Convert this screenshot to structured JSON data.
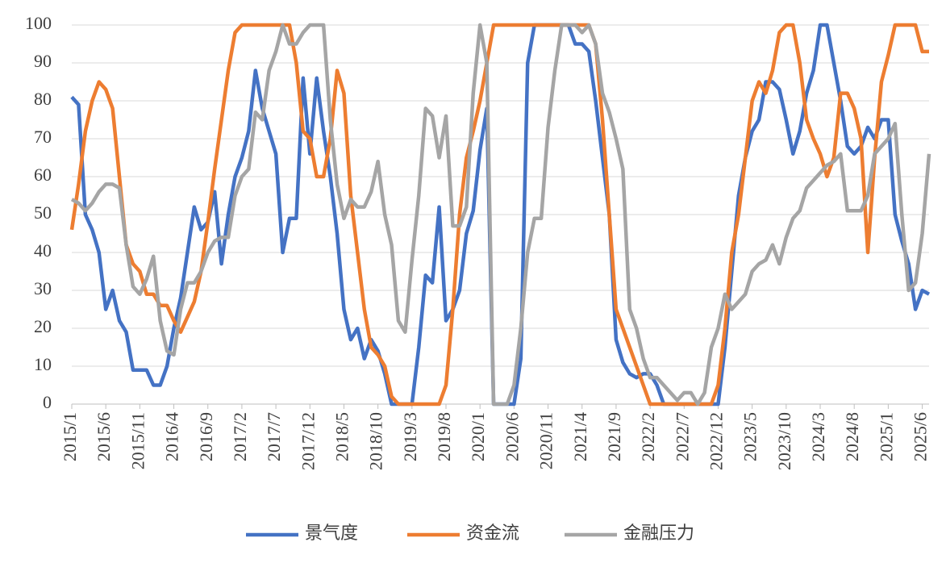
{
  "chart_data": {
    "type": "line",
    "categories": [
      "2015/1",
      null,
      null,
      null,
      null,
      "2015/6",
      null,
      null,
      null,
      null,
      "2015/11",
      null,
      null,
      null,
      null,
      "2016/4",
      null,
      null,
      null,
      null,
      "2016/9",
      null,
      null,
      null,
      null,
      "2017/2",
      null,
      null,
      null,
      null,
      "2017/7",
      null,
      null,
      null,
      null,
      "2017/12",
      null,
      null,
      null,
      null,
      "2018/5",
      null,
      null,
      null,
      null,
      "2018/10",
      null,
      null,
      null,
      null,
      "2019/3",
      null,
      null,
      null,
      null,
      "2019/8",
      null,
      null,
      null,
      null,
      "2020/1",
      null,
      null,
      null,
      null,
      "2020/6",
      null,
      null,
      null,
      null,
      "2020/11",
      null,
      null,
      null,
      null,
      "2021/4",
      null,
      null,
      null,
      null,
      "2021/9",
      null,
      null,
      null,
      null,
      "2022/2",
      null,
      null,
      null,
      null,
      "2022/7",
      null,
      null,
      null,
      null,
      "2022/12",
      null,
      null,
      null,
      null,
      "2023/5",
      null,
      null,
      null,
      null,
      "2023/10",
      null,
      null,
      null,
      null,
      "2024/3",
      null,
      null,
      null,
      null,
      "2024/8",
      null,
      null,
      null,
      null,
      "2025/1",
      null,
      null,
      null,
      null,
      "2025/6",
      null
    ],
    "series": [
      {
        "name": "景气度",
        "color": "#4472c4",
        "values": [
          81,
          79,
          50,
          46,
          40,
          25,
          30,
          22,
          19,
          9,
          9,
          9,
          5,
          5,
          10,
          20,
          28,
          40,
          52,
          46,
          48,
          56,
          37,
          50,
          60,
          65,
          72,
          88,
          78,
          72,
          66,
          40,
          49,
          49,
          86,
          66,
          86,
          72,
          60,
          45,
          25,
          17,
          20,
          12,
          17,
          14,
          8,
          0,
          0,
          0,
          0,
          15,
          34,
          32,
          52,
          22,
          25,
          30,
          45,
          51,
          67,
          78,
          0,
          0,
          0,
          0,
          12,
          90,
          100,
          100,
          100,
          100,
          100,
          100,
          95,
          95,
          93,
          80,
          65,
          50,
          17,
          11,
          8,
          7,
          8,
          8,
          5,
          0,
          0,
          0,
          0,
          0,
          0,
          0,
          0,
          0,
          15,
          35,
          55,
          65,
          72,
          75,
          85,
          85,
          83,
          75,
          66,
          72,
          82,
          88,
          100,
          100,
          90,
          80,
          68,
          66,
          68,
          73,
          70,
          75,
          75,
          50,
          43,
          37,
          25,
          30,
          29
        ]
      },
      {
        "name": "资金流",
        "color": "#ed7d31",
        "values": [
          46,
          58,
          72,
          80,
          85,
          83,
          78,
          60,
          42,
          37,
          35,
          29,
          29,
          26,
          26,
          22,
          19,
          23,
          27,
          35,
          48,
          62,
          75,
          88,
          98,
          100,
          100,
          100,
          100,
          100,
          100,
          100,
          100,
          90,
          72,
          70,
          60,
          60,
          70,
          88,
          82,
          55,
          40,
          25,
          15,
          13,
          10,
          2,
          0,
          0,
          0,
          0,
          0,
          0,
          0,
          5,
          25,
          50,
          65,
          72,
          80,
          90,
          100,
          100,
          100,
          100,
          100,
          100,
          100,
          100,
          100,
          100,
          100,
          100,
          100,
          100,
          100,
          95,
          75,
          50,
          25,
          20,
          15,
          10,
          5,
          0,
          0,
          0,
          0,
          0,
          0,
          0,
          0,
          0,
          0,
          5,
          20,
          40,
          50,
          65,
          80,
          85,
          82,
          88,
          98,
          100,
          100,
          90,
          75,
          70,
          66,
          60,
          65,
          82,
          82,
          78,
          70,
          40,
          65,
          85,
          92,
          100,
          100,
          100,
          100,
          93,
          93
        ]
      },
      {
        "name": "金融压力",
        "color": "#a5a5a5",
        "values": [
          54,
          53,
          51,
          53,
          56,
          58,
          58,
          57,
          42,
          31,
          29,
          33,
          39,
          22,
          14,
          13,
          25,
          32,
          32,
          35,
          40,
          43,
          44,
          44,
          55,
          60,
          62,
          77,
          75,
          88,
          93,
          100,
          95,
          95,
          98,
          100,
          100,
          100,
          75,
          58,
          49,
          54,
          52,
          52,
          56,
          64,
          50,
          42,
          22,
          19,
          38,
          55,
          78,
          76,
          65,
          76,
          47,
          47,
          52,
          82,
          100,
          90,
          0,
          0,
          0,
          5,
          20,
          40,
          49,
          49,
          73,
          88,
          100,
          100,
          100,
          98,
          100,
          95,
          82,
          77,
          70,
          62,
          25,
          20,
          12,
          7,
          7,
          5,
          3,
          1,
          3,
          3,
          0,
          3,
          15,
          20,
          29,
          25,
          27,
          29,
          35,
          37,
          38,
          42,
          37,
          44,
          49,
          51,
          57,
          59,
          61,
          63,
          64,
          66,
          51,
          51,
          51,
          55,
          66,
          68,
          70,
          74,
          50,
          30,
          32,
          45,
          66
        ]
      }
    ],
    "ylim": [
      0,
      100
    ],
    "yticks": [
      0,
      10,
      20,
      30,
      40,
      50,
      60,
      70,
      80,
      90,
      100
    ],
    "grid": true,
    "legend": "bottom"
  }
}
